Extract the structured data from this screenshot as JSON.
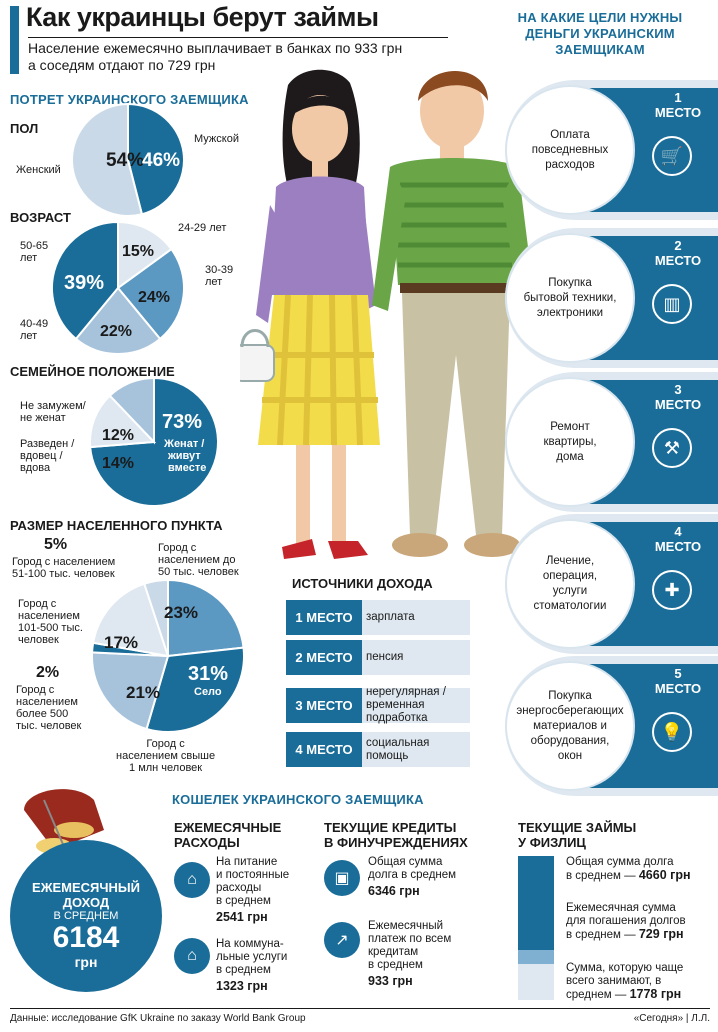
{
  "header": {
    "title": "Как украинцы берут займы",
    "subtitle_1": "Население ежемесячно выплачивает в банках по 933 грн",
    "subtitle_2": "а соседям отдают по 729 грн"
  },
  "portrait": {
    "heading": "ПОТРЕТ УКРАИНСКОГО ЗАЕМЩИКА",
    "gender": {
      "heading": "ПОЛ",
      "female_label": "Женский",
      "male_label": "Мужской",
      "female_pct": "54%",
      "male_pct": "46%"
    },
    "age": {
      "heading": "ВОЗРАСТ",
      "l1": "24-29 лет",
      "l2a": "30-39",
      "l2b": "лет",
      "l3a": "40-49",
      "l3b": "лет",
      "l4a": "50-65",
      "l4b": "лет",
      "p1": "15%",
      "p2": "24%",
      "p3": "22%",
      "p4": "39%"
    },
    "family": {
      "heading": "СЕМЕЙНОЕ ПОЛОЖЕНИЕ",
      "l1a": "Не замужем/",
      "l1b": "не женат",
      "l2a": "Разведен /",
      "l2b": "вдовец /",
      "l2c": "вдова",
      "p1": "12%",
      "p2": "14%",
      "p3": "73%",
      "p3a": "Женат /",
      "p3b": "живут",
      "p3c": "вместе"
    },
    "settlement": {
      "heading": "РАЗМЕР НАСЕЛЕННОГО ПУНКТА",
      "s1p": "5%",
      "s1a": "Город с населением",
      "s1b": "51-100 тыс. человек",
      "s2p": "23%",
      "s2a": "Город с",
      "s2b": "населением до",
      "s2c": "50 тыс. человек",
      "s3p": "17%",
      "s3a": "Город с",
      "s3b": "населением",
      "s3c": "101-500 тыс.",
      "s3d": "человек",
      "s4p": "2%",
      "s4a": "Город с",
      "s4b": "населением",
      "s4c": "более 500",
      "s4d": "тыс. человек",
      "s5p": "21%",
      "s5a": "Город с",
      "s5b": "населением свыше",
      "s5c": "1 млн человек",
      "s6p": "31%",
      "s6a": "Село"
    }
  },
  "chart_data": [
    {
      "type": "pie",
      "title": "ПОЛ",
      "categories": [
        "Мужской",
        "Женский"
      ],
      "values": [
        46,
        54
      ],
      "colors": [
        "#1a6d99",
        "#c9d9e8"
      ]
    },
    {
      "type": "pie",
      "title": "ВОЗРАСТ",
      "categories": [
        "24-29 лет",
        "30-39 лет",
        "40-49 лет",
        "50-65 лет"
      ],
      "values": [
        15,
        24,
        22,
        39
      ],
      "colors": [
        "#dfe8f0",
        "#5b98c2",
        "#a6c3db",
        "#1a6d99"
      ]
    },
    {
      "type": "pie",
      "title": "СЕМЕЙНОЕ ПОЛОЖЕНИЕ",
      "categories": [
        "Женат / живут вместе",
        "Разведен / вдовец / вдова",
        "Не замужем/ не женат"
      ],
      "values": [
        73,
        14,
        12
      ],
      "colors": [
        "#1a6d99",
        "#dfe8f0",
        "#a6c3db"
      ]
    },
    {
      "type": "pie",
      "title": "РАЗМЕР НАСЕЛЕННОГО ПУНКТА",
      "categories": [
        "Город с населением до 50 тыс. человек",
        "Село",
        "Город с населением свыше 1 млн человек",
        "Город с населением более 500 тыс. человек",
        "Город с населением 101-500 тыс. человек",
        "Город с населением 51-100 тыс. человек"
      ],
      "values": [
        23,
        31,
        21,
        2,
        17,
        5
      ],
      "colors": [
        "#5b98c2",
        "#1a6d99",
        "#a6c3db",
        "#1a6d99",
        "#dfe8f0",
        "#c9d9e8"
      ]
    }
  ],
  "goals": {
    "heading_1": "НА КАКИЕ ЦЕЛИ НУЖНЫ",
    "heading_2": "ДЕНЬГИ УКРАИНСКИМ",
    "heading_3": "ЗАЕМЩИКАМ",
    "place_word": "МЕСТО",
    "items": [
      {
        "rank": "1",
        "l1": "Оплата",
        "l2": "повседневных",
        "l3": "расходов",
        "l4": "",
        "l5": "",
        "icon": "cart-icon"
      },
      {
        "rank": "2",
        "l1": "Покупка",
        "l2": "бытовой техники,",
        "l3": "электроники",
        "l4": "",
        "l5": "",
        "icon": "speaker-icon"
      },
      {
        "rank": "3",
        "l1": "Ремонт",
        "l2": "квартиры,",
        "l3": "дома",
        "l4": "",
        "l5": "",
        "icon": "wrench-icon"
      },
      {
        "rank": "4",
        "l1": "Лечение,",
        "l2": "операция,",
        "l3": "услуги",
        "l4": "стоматологии",
        "l5": "",
        "icon": "medkit-icon"
      },
      {
        "rank": "5",
        "l1": "Покупка",
        "l2": "энергосберегающих",
        "l3": "материалов и",
        "l4": "оборудования,",
        "l5": "окон",
        "icon": "lightbulb-icon"
      }
    ]
  },
  "income": {
    "heading": "ИСТОЧНИКИ ДОХОДА",
    "rows": [
      {
        "place": "1 МЕСТО",
        "t1": "зарплата",
        "t2": ""
      },
      {
        "place": "2 МЕСТО",
        "t1": "пенсия",
        "t2": ""
      },
      {
        "place": "3 МЕСТО",
        "t1": "нерегулярная /",
        "t2": "временная",
        "t3": "подработка"
      },
      {
        "place": "4 МЕСТО",
        "t1": "социальная",
        "t2": "помощь"
      }
    ]
  },
  "wallet": {
    "heading": "КОШЕЛЕК УКРАИНСКОГО ЗАЕМЩИКА",
    "income_circle": {
      "l1": "ЕЖЕМЕСЯЧНЫЙ",
      "l2": "ДОХОД",
      "l3": "В СРЕДНЕМ",
      "value": "6184",
      "unit": "грн"
    },
    "expenses": {
      "h1": "ЕЖЕМЕСЯЧНЫЕ",
      "h2": "РАСХОДЫ",
      "e1a": "На питание",
      "e1b": "и постоянные",
      "e1c": "расходы",
      "e1d": "в среднем",
      "e1v": "2541 грн",
      "e2a": "На коммуна-",
      "e2b": "льные услуги",
      "e2c": "в среднем",
      "e2v": "1323 грн"
    },
    "credits": {
      "h1": "ТЕКУЩИЕ КРЕДИТЫ",
      "h2": "В ФИНУЧРЕЖДЕНИЯХ",
      "c1a": "Общая сумма",
      "c1b": "долга в среднем",
      "c1v": "6346 грн",
      "c2a": "Ежемесячный",
      "c2b": "платеж по всем",
      "c2c": "кредитам",
      "c2d": "в среднем",
      "c2v": "933 грн"
    },
    "loans": {
      "h1": "ТЕКУЩИЕ ЗАЙМЫ",
      "h2": "У ФИЗЛИЦ",
      "d1a": "Общая сумма долга",
      "d1b": "в среднем —",
      "d1v": "4660 грн",
      "d2a": "Ежемесячная сумма",
      "d2b": "для погашения долгов",
      "d2c": "в среднем —",
      "d2v": "729 грн",
      "d3a": "Сумма, которую чаще",
      "d3b": "всего занимают, в",
      "d3c": "среднем —",
      "d3v": "1778 грн"
    }
  },
  "footer": {
    "source": "Данные: исследование GfK Ukraine по заказу World Bank Group",
    "credit": "«Сегодня» | Л.Л."
  }
}
